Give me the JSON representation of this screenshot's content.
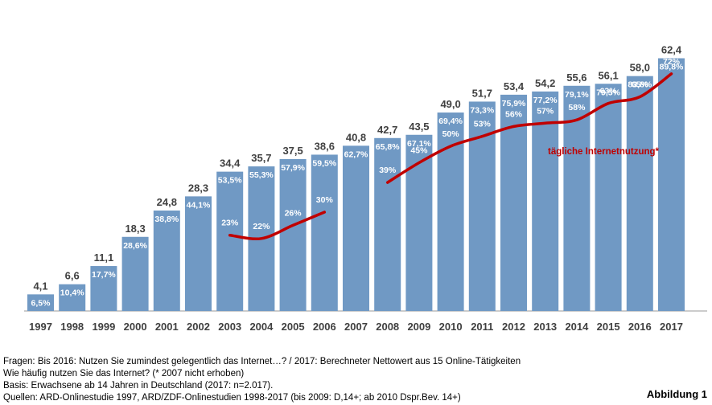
{
  "chart_data": {
    "type": "bar",
    "title": "",
    "xlabel": "",
    "ylabel": "",
    "categories": [
      "1997",
      "1998",
      "1999",
      "2000",
      "2001",
      "2002",
      "2003",
      "2004",
      "2005",
      "2006",
      "2007",
      "2008",
      "2009",
      "2010",
      "2011",
      "2012",
      "2013",
      "2014",
      "2015",
      "2016",
      "2017"
    ],
    "series": [
      {
        "type": "bar",
        "values": [
          4.1,
          6.6,
          11.1,
          18.3,
          24.8,
          28.3,
          34.4,
          35.7,
          37.5,
          38.6,
          40.8,
          42.7,
          43.5,
          49.0,
          51.7,
          53.4,
          54.2,
          55.6,
          56.1,
          58.0,
          62.4
        ],
        "value_labels": [
          "4,1",
          "6,6",
          "11,1",
          "18,3",
          "24,8",
          "28,3",
          "34,4",
          "35,7",
          "37,5",
          "38,6",
          "40,8",
          "42,7",
          "43,5",
          "49,0",
          "51,7",
          "53,4",
          "54,2",
          "55,6",
          "56,1",
          "58,0",
          "62,4"
        ],
        "percent_labels": [
          "6,5%",
          "10,4%",
          "17,7%",
          "28,6%",
          "38,8%",
          "44,1%",
          "53,5%",
          "55,3%",
          "57,9%",
          "59,5%",
          "62,7%",
          "65,8%",
          "67,1%",
          "69,4%",
          "73,3%",
          "75,9%",
          "77,2%",
          "79,1%",
          "79,5%",
          "83,8%",
          "89,8%"
        ],
        "color": "#7099c4"
      },
      {
        "name": "tägliche Internetnutzung*",
        "type": "line",
        "segments": [
          {
            "categories": [
              "2003",
              "2004",
              "2005",
              "2006"
            ],
            "values": [
              23,
              22,
              26,
              30
            ]
          },
          {
            "categories": [
              "2008",
              "2009",
              "2010",
              "2011",
              "2012",
              "2013",
              "2014",
              "2015",
              "2016",
              "2017"
            ],
            "values": [
              39,
              45,
              50,
              53,
              56,
              57,
              58,
              63,
              65,
              72
            ]
          }
        ],
        "point_labels": [
          {
            "category": "2003",
            "label": "23%"
          },
          {
            "category": "2004",
            "label": "22%"
          },
          {
            "category": "2005",
            "label": "26%"
          },
          {
            "category": "2006",
            "label": "30%"
          },
          {
            "category": "2008",
            "label": "39%"
          },
          {
            "category": "2009",
            "label": "45%"
          },
          {
            "category": "2010",
            "label": "50%"
          },
          {
            "category": "2011",
            "label": "53%"
          },
          {
            "category": "2012",
            "label": "56%"
          },
          {
            "category": "2013",
            "label": "57%"
          },
          {
            "category": "2014",
            "label": "58%"
          },
          {
            "category": "2015",
            "label": "63%"
          },
          {
            "category": "2016",
            "label": "65%"
          },
          {
            "category": "2017",
            "label": "72%"
          }
        ],
        "color": "#c00000"
      }
    ],
    "legend_label": "tägliche Internetnutzung*",
    "ylim": [
      0,
      65
    ],
    "grid": false
  },
  "footnotes": {
    "line1": "Fragen: Bis 2016: Nutzen Sie zumindest gelegentlich das Internet…?  / 2017: Berechneter Nettowert aus 15 Online-Tätigkeiten",
    "line2": "Wie häufig nutzen Sie das Internet? (* 2007 nicht erhoben)",
    "line3": "Basis: Erwachsene ab 14 Jahren in Deutschland (2017: n=2.017).",
    "line4": "Quellen: ARD-Onlinestudie 1997, ARD/ZDF-Onlinestudien 1998-2017 (bis 2009: D,14+; ab 2010 Dspr.Bev. 14+)"
  },
  "figure_label": "Abbildung 1"
}
